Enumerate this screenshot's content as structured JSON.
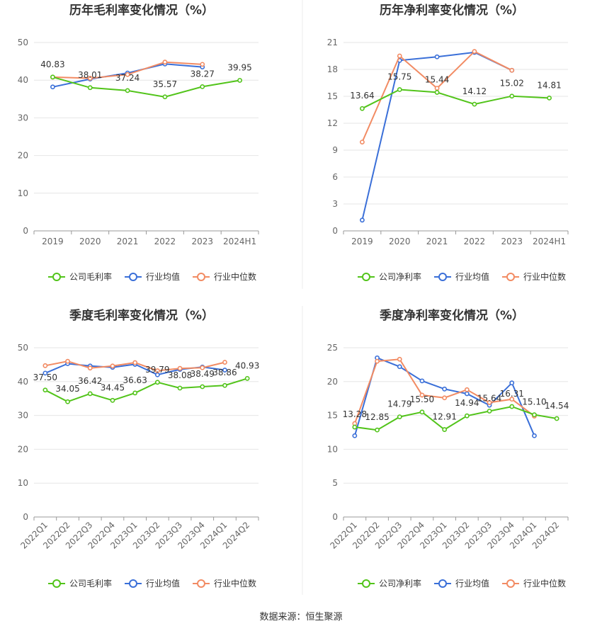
{
  "source_label": "数据来源：恒生聚源",
  "colors": {
    "company": "#52c41a",
    "avg": "#3a6fd8",
    "median": "#f28b63",
    "grid": "#e6e6e6",
    "axis": "#999999"
  },
  "chart_data": [
    {
      "type": "line",
      "title": "历年毛利率变化情况（%）",
      "categories": [
        "2019",
        "2020",
        "2021",
        "2022",
        "2023",
        "2024H1"
      ],
      "ylim": [
        0,
        50
      ],
      "yticks": [
        0,
        10,
        20,
        30,
        40,
        50
      ],
      "legend": [
        "公司毛利率",
        "行业均值",
        "行业中位数"
      ],
      "series": [
        {
          "name": "公司毛利率",
          "values": [
            40.83,
            38.01,
            37.24,
            35.57,
            38.27,
            39.95
          ],
          "labels": [
            "40.83",
            "38.01",
            "37.24",
            "35.57",
            "38.27",
            "39.95"
          ]
        },
        {
          "name": "行业均值",
          "values": [
            38.2,
            40.3,
            41.9,
            44.3,
            43.5,
            null
          ]
        },
        {
          "name": "行业中位数",
          "values": [
            40.8,
            40.5,
            41.5,
            44.8,
            44.2,
            null
          ]
        }
      ]
    },
    {
      "type": "line",
      "title": "历年净利率变化情况（%）",
      "categories": [
        "2019",
        "2020",
        "2021",
        "2022",
        "2023",
        "2024H1"
      ],
      "ylim": [
        0,
        21
      ],
      "yticks": [
        0,
        3,
        6,
        9,
        12,
        15,
        18,
        21
      ],
      "legend": [
        "公司净利率",
        "行业均值",
        "行业中位数"
      ],
      "series": [
        {
          "name": "公司净利率",
          "values": [
            13.64,
            15.75,
            15.44,
            14.12,
            15.02,
            14.81
          ],
          "labels": [
            "13.64",
            "15.75",
            "15.44",
            "14.12",
            "15.02",
            "14.81"
          ]
        },
        {
          "name": "行业均值",
          "values": [
            1.2,
            19.0,
            19.4,
            19.9,
            17.9,
            null
          ]
        },
        {
          "name": "行业中位数",
          "values": [
            9.9,
            19.5,
            15.9,
            20.0,
            17.9,
            null
          ]
        }
      ]
    },
    {
      "type": "line",
      "title": "季度毛利率变化情况（%）",
      "categories": [
        "2022Q1",
        "2022Q2",
        "2022Q3",
        "2022Q4",
        "2023Q1",
        "2023Q2",
        "2023Q3",
        "2023Q4",
        "2024Q1",
        "2024Q2"
      ],
      "ylim": [
        0,
        50
      ],
      "yticks": [
        0,
        10,
        20,
        30,
        40,
        50
      ],
      "legend": [
        "公司毛利率",
        "行业均值",
        "行业中位数"
      ],
      "series": [
        {
          "name": "公司毛利率",
          "values": [
            37.5,
            34.05,
            36.42,
            34.45,
            36.63,
            39.79,
            38.08,
            38.49,
            38.86,
            40.93
          ],
          "labels": [
            "37.50",
            "34.05",
            "36.42",
            "34.45",
            "36.63",
            "39.79",
            "38.08",
            "38.49",
            "38.86",
            "40.93"
          ]
        },
        {
          "name": "行业均值",
          "values": [
            42.5,
            45.3,
            44.6,
            44.2,
            45.1,
            42.0,
            43.6,
            44.3,
            43.4,
            null
          ]
        },
        {
          "name": "行业中位数",
          "values": [
            44.7,
            46.0,
            44.0,
            44.6,
            45.6,
            43.2,
            43.9,
            44.1,
            45.7,
            null
          ]
        }
      ]
    },
    {
      "type": "line",
      "title": "季度净利率变化情况（%）",
      "categories": [
        "2022Q1",
        "2022Q2",
        "2022Q3",
        "2022Q4",
        "2023Q1",
        "2023Q2",
        "2023Q3",
        "2023Q4",
        "2024Q1",
        "2024Q2"
      ],
      "ylim": [
        0,
        25
      ],
      "yticks": [
        0,
        5,
        10,
        15,
        20,
        25
      ],
      "legend": [
        "公司净利率",
        "行业均值",
        "行业中位数"
      ],
      "series": [
        {
          "name": "公司净利率",
          "values": [
            13.28,
            12.85,
            14.79,
            15.5,
            12.91,
            14.94,
            15.64,
            16.31,
            15.1,
            14.54
          ],
          "labels": [
            "13.28",
            "12.85",
            "14.79",
            "15.50",
            "12.91",
            "14.94",
            "15.64",
            "16.31",
            "15.10",
            "14.54"
          ]
        },
        {
          "name": "行业均值",
          "values": [
            12.0,
            23.5,
            22.2,
            20.1,
            18.9,
            18.2,
            16.5,
            19.8,
            12.0,
            null
          ]
        },
        {
          "name": "行业中位数",
          "values": [
            13.8,
            23.0,
            23.3,
            18.0,
            17.6,
            18.8,
            16.9,
            17.4,
            14.9,
            null
          ]
        }
      ]
    }
  ]
}
